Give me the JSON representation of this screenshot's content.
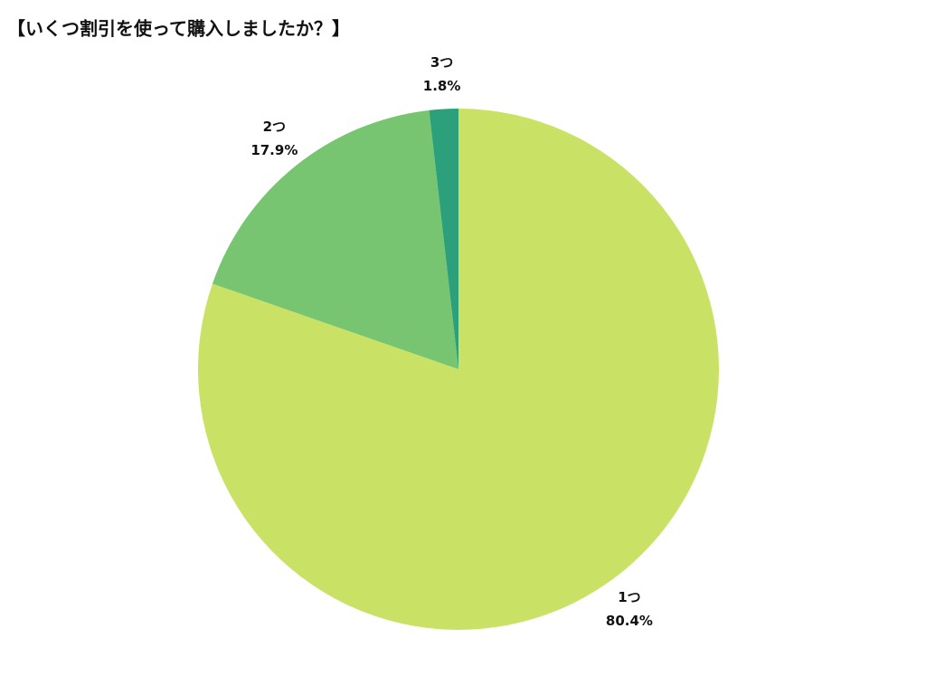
{
  "chart_data": {
    "type": "pie",
    "title": "【いくつ割引を使って購入しましたか？】",
    "categories": [
      "1つ",
      "2つ",
      "3つ"
    ],
    "values": [
      80.4,
      17.9,
      1.8
    ],
    "value_labels": [
      "80.4%",
      "17.9%",
      "1.8%"
    ],
    "colors": [
      "#c9e265",
      "#78c571",
      "#2ba07a"
    ]
  }
}
